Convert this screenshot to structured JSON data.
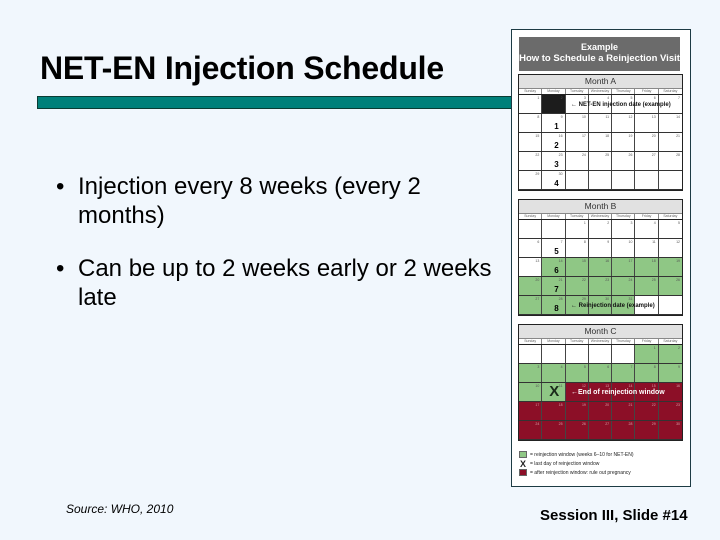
{
  "slide": {
    "title": "NET-EN Injection Schedule",
    "bullets": [
      {
        "marker": "•",
        "text": "Injection every 8 weeks (every 2 months)"
      },
      {
        "marker": "•",
        "text": "Can be up to 2 weeks early or 2 weeks late"
      }
    ],
    "source": "Source: WHO, 2010",
    "slide_number": "Session III, Slide #14",
    "colors": {
      "background": "#f1f7fd",
      "title_bar": "#00807a",
      "reinjection_window": "#8fc785",
      "after_window": "#8c0f27",
      "injection_date": "#1c1c1c"
    }
  },
  "figure": {
    "header_line1": "Example",
    "header_line2": "How to Schedule a Reinjection Visit",
    "day_names": [
      "Sunday",
      "Monday",
      "Tuesday",
      "Wednesday",
      "Thursday",
      "Friday",
      "Saturday"
    ],
    "months": [
      {
        "title": "Month A",
        "note": "← NET-EN injection date (example)",
        "weeks": [
          [
            {
              "n": "1"
            },
            {
              "n": "2",
              "style": "black"
            },
            {
              "n": "3"
            },
            {
              "n": "4"
            },
            {
              "n": "5"
            },
            {
              "n": "6"
            },
            {
              "n": "7"
            }
          ],
          [
            {
              "n": "8"
            },
            {
              "n": "9",
              "wk": "1"
            },
            {
              "n": "10"
            },
            {
              "n": "11"
            },
            {
              "n": "12"
            },
            {
              "n": "13"
            },
            {
              "n": "14"
            }
          ],
          [
            {
              "n": "15"
            },
            {
              "n": "16",
              "wk": "2"
            },
            {
              "n": "17"
            },
            {
              "n": "18"
            },
            {
              "n": "19"
            },
            {
              "n": "20"
            },
            {
              "n": "21"
            }
          ],
          [
            {
              "n": "22"
            },
            {
              "n": "23",
              "wk": "3"
            },
            {
              "n": "24"
            },
            {
              "n": "25"
            },
            {
              "n": "26"
            },
            {
              "n": "27"
            },
            {
              "n": "28"
            }
          ],
          [
            {
              "n": "29"
            },
            {
              "n": "30",
              "wk": "4"
            },
            {
              "n": ""
            },
            {
              "n": ""
            },
            {
              "n": ""
            },
            {
              "n": ""
            },
            {
              "n": ""
            }
          ]
        ]
      },
      {
        "title": "Month B",
        "note": "← Reinjection date (example)",
        "weeks": [
          [
            {
              "n": ""
            },
            {
              "n": ""
            },
            {
              "n": "1"
            },
            {
              "n": "2"
            },
            {
              "n": "3"
            },
            {
              "n": "4"
            },
            {
              "n": "5"
            }
          ],
          [
            {
              "n": "6"
            },
            {
              "n": "7",
              "wk": "5"
            },
            {
              "n": "8"
            },
            {
              "n": "9"
            },
            {
              "n": "10"
            },
            {
              "n": "11"
            },
            {
              "n": "12"
            }
          ],
          [
            {
              "n": "13"
            },
            {
              "n": "14",
              "wk": "6",
              "style": "green"
            },
            {
              "n": "15",
              "style": "green"
            },
            {
              "n": "16",
              "style": "green"
            },
            {
              "n": "17",
              "style": "green"
            },
            {
              "n": "18",
              "style": "green"
            },
            {
              "n": "19",
              "style": "green"
            }
          ],
          [
            {
              "n": "20",
              "style": "green"
            },
            {
              "n": "21",
              "wk": "7",
              "style": "green"
            },
            {
              "n": "22",
              "style": "green"
            },
            {
              "n": "23",
              "style": "green"
            },
            {
              "n": "24",
              "style": "green"
            },
            {
              "n": "25",
              "style": "green"
            },
            {
              "n": "26",
              "style": "green"
            }
          ],
          [
            {
              "n": "27",
              "style": "green"
            },
            {
              "n": "28",
              "wk": "8",
              "style": "green"
            },
            {
              "n": "29",
              "style": "green"
            },
            {
              "n": "30",
              "style": "green"
            },
            {
              "n": "31",
              "style": "green"
            },
            {
              "n": ""
            },
            {
              "n": ""
            }
          ]
        ]
      },
      {
        "title": "Month C",
        "note": "←End of reinjection window",
        "weeks": [
          [
            {
              "n": ""
            },
            {
              "n": ""
            },
            {
              "n": ""
            },
            {
              "n": ""
            },
            {
              "n": ""
            },
            {
              "n": "1",
              "style": "green"
            },
            {
              "n": "2",
              "style": "green"
            }
          ],
          [
            {
              "n": "3",
              "style": "green"
            },
            {
              "n": "4",
              "style": "green"
            },
            {
              "n": "5",
              "style": "green"
            },
            {
              "n": "6",
              "style": "green"
            },
            {
              "n": "7",
              "style": "green"
            },
            {
              "n": "8",
              "style": "green"
            },
            {
              "n": "9",
              "style": "green"
            }
          ],
          [
            {
              "n": "10",
              "style": "green"
            },
            {
              "n": "11",
              "style": "green",
              "x": "X"
            },
            {
              "n": "12",
              "style": "red"
            },
            {
              "n": "13",
              "style": "red"
            },
            {
              "n": "14",
              "style": "red"
            },
            {
              "n": "15",
              "style": "red"
            },
            {
              "n": "16",
              "style": "red"
            }
          ],
          [
            {
              "n": "17",
              "style": "red"
            },
            {
              "n": "18",
              "style": "red"
            },
            {
              "n": "19",
              "style": "red"
            },
            {
              "n": "20",
              "style": "red"
            },
            {
              "n": "21",
              "style": "red"
            },
            {
              "n": "22",
              "style": "red"
            },
            {
              "n": "23",
              "style": "red"
            }
          ],
          [
            {
              "n": "24",
              "style": "red"
            },
            {
              "n": "25",
              "style": "red"
            },
            {
              "n": "26",
              "style": "red"
            },
            {
              "n": "27",
              "style": "red"
            },
            {
              "n": "28",
              "style": "red"
            },
            {
              "n": "29",
              "style": "red"
            },
            {
              "n": "30",
              "style": "red"
            }
          ]
        ]
      }
    ],
    "legend": [
      {
        "swatch": "green",
        "text": "= reinjection window (weeks 6–10 for NET-EN)"
      },
      {
        "swatch": "x",
        "symbol": "X",
        "text": "= last day of reinjection window"
      },
      {
        "swatch": "red",
        "text": "= after reinjection window: rule out pregnancy"
      }
    ]
  }
}
